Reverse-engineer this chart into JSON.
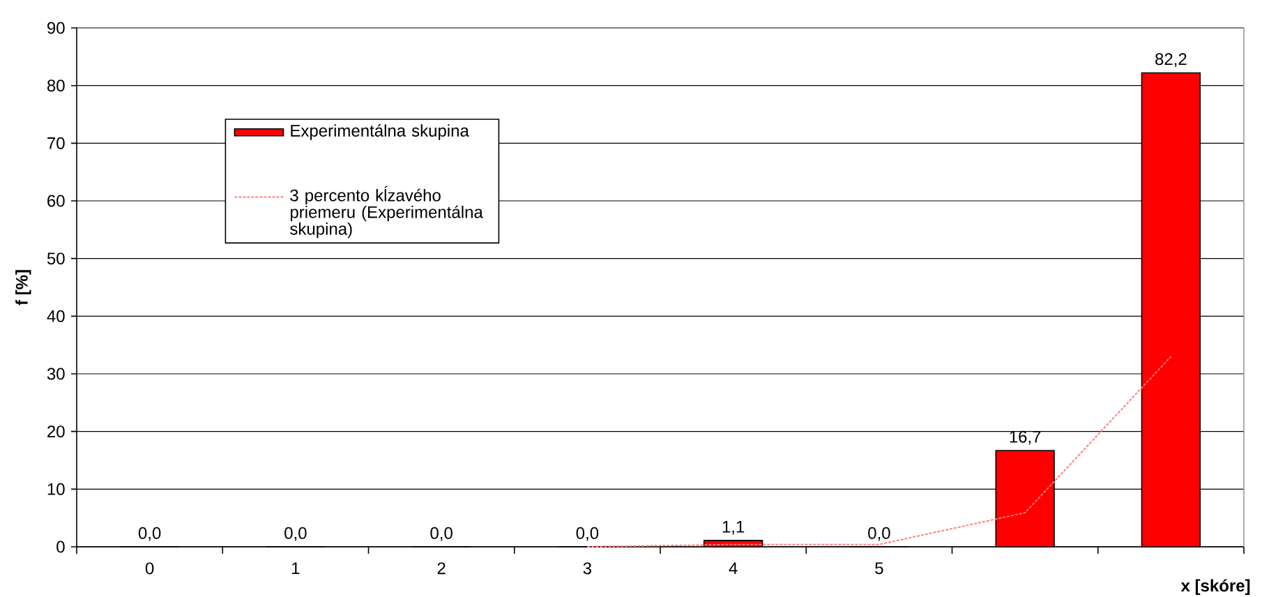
{
  "chart_data": {
    "type": "bar",
    "xlabel": "x [skóre]",
    "ylabel": "f [%]",
    "categories": [
      "0",
      "1",
      "2",
      "3",
      "4",
      "5",
      null,
      null
    ],
    "series": [
      {
        "name": "Experimentálna skupina",
        "color": "#ff0000",
        "values": [
          0,
          0,
          0,
          0,
          1.1,
          0,
          16.7,
          82.2
        ],
        "value_labels": [
          "0,0",
          "0,0",
          "0,0",
          "0,0",
          "1,1",
          "0,0",
          "16,7",
          "82,2"
        ]
      },
      {
        "name": "3 percento kĺzavého priemeru (Experimentálna skupina)",
        "type": "line",
        "color": "#ff8080",
        "line_style": "dashed",
        "values": [
          null,
          null,
          null,
          0,
          0.4,
          0.4,
          5.9,
          33
        ]
      }
    ],
    "ylim": [
      0,
      90
    ],
    "yticks": [
      0,
      10,
      20,
      30,
      40,
      50,
      60,
      70,
      80,
      90
    ],
    "grid": "y",
    "legend": "top left"
  }
}
